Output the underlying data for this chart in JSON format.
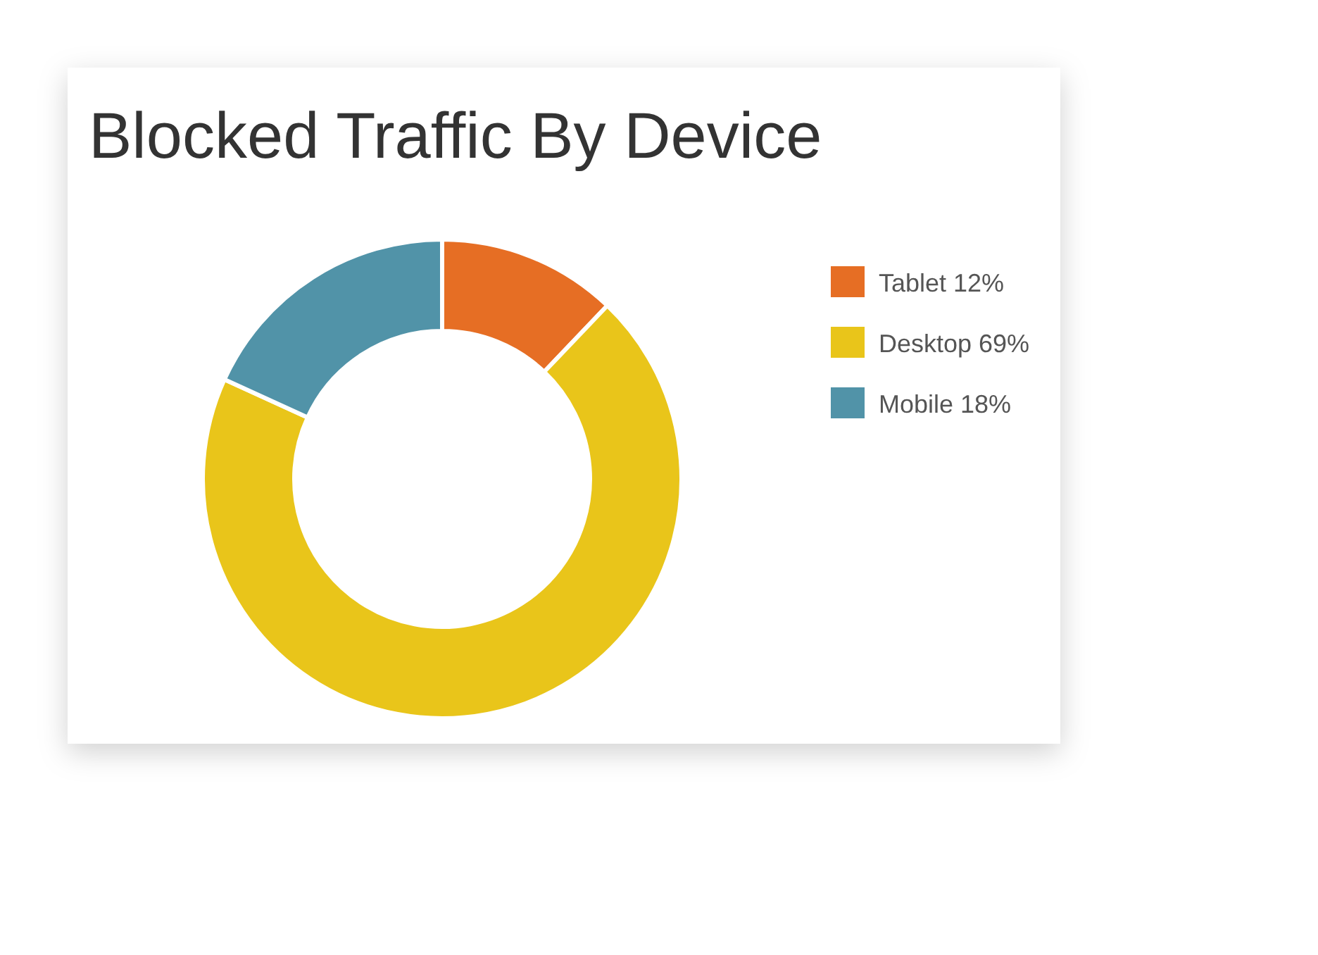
{
  "chart_data": {
    "type": "donut",
    "title": "Blocked Traffic By Device",
    "categories": [
      "Tablet 12%",
      "Desktop 69%",
      "Mobile 18%"
    ],
    "values": [
      12,
      69,
      18
    ],
    "colors": [
      "#e66e24",
      "#e9c51a",
      "#5193a8"
    ],
    "legend": "right"
  }
}
